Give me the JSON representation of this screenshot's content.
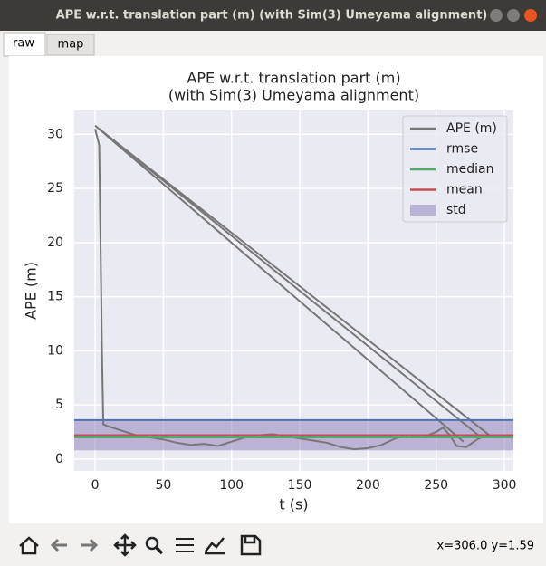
{
  "window": {
    "title": "APE w.r.t. translation part (m) (with Sim(3) Umeyama alignment)"
  },
  "tabs": [
    "raw",
    "map"
  ],
  "chart_data": {
    "type": "line",
    "title": "APE w.r.t. translation part (m)",
    "subtitle": "(with Sim(3) Umeyama alignment)",
    "x_label": "t (s)",
    "y_label": "APE (m)",
    "series": [
      {
        "name": "APE (m)",
        "color": "#777777",
        "x": [
          0,
          3,
          5,
          6,
          10,
          20,
          30,
          40,
          50,
          60,
          70,
          80,
          90,
          100,
          110,
          120,
          130,
          140,
          150,
          160,
          170,
          180,
          190,
          200,
          210,
          220,
          230,
          240,
          250,
          255,
          260,
          265,
          272,
          280,
          288,
          0,
          282,
          0,
          270
        ],
        "values": [
          30.5,
          29,
          10,
          3.2,
          3.0,
          2.6,
          2.2,
          2.0,
          1.8,
          1.5,
          1.3,
          1.4,
          1.2,
          1.6,
          2.0,
          2.2,
          2.3,
          2.1,
          1.9,
          1.7,
          1.5,
          1.1,
          0.9,
          1.0,
          1.3,
          1.9,
          2.2,
          2.0,
          2.5,
          2.9,
          2.2,
          1.2,
          1.1,
          1.8,
          2.3,
          30.8,
          2.1,
          30.8,
          1.6
        ]
      }
    ],
    "lines": [
      {
        "name": "rmse",
        "color": "#4c72b0",
        "value": 3.6
      },
      {
        "name": "median",
        "color": "#55a868",
        "value": 2.0
      },
      {
        "name": "mean",
        "color": "#c44e52",
        "value": 2.2
      },
      {
        "name": "std",
        "color": "#8172b2",
        "value": 1.4
      }
    ],
    "xlim": [
      -15.3,
      306.6
    ],
    "ylim": [
      -1.1,
      32.2
    ],
    "xticks": [
      0,
      50,
      100,
      150,
      200,
      250,
      300
    ],
    "yticks": [
      0,
      5,
      10,
      15,
      20,
      25,
      30
    ],
    "grid": true,
    "legend": "upper right"
  },
  "status": "x=306.0 y=1.59"
}
